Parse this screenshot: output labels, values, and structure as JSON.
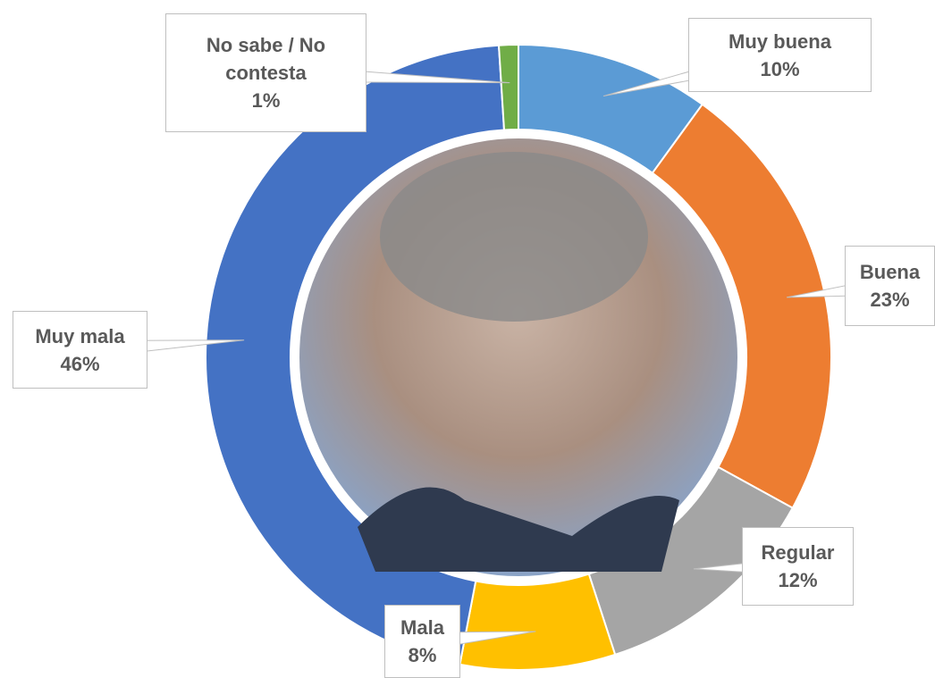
{
  "chart_data": {
    "type": "donut",
    "categories": [
      "Muy buena",
      "Buena",
      "Regular",
      "Mala",
      "Muy mala",
      "No sabe / No contesta"
    ],
    "values": [
      10,
      23,
      12,
      8,
      46,
      1
    ],
    "value_labels": [
      "10%",
      "23%",
      "12%",
      "8%",
      "46%",
      "1%"
    ],
    "colors": [
      "#5b9bd5",
      "#ed7d31",
      "#a5a5a5",
      "#ffc000",
      "#4472c4",
      "#70ad47"
    ]
  }
}
